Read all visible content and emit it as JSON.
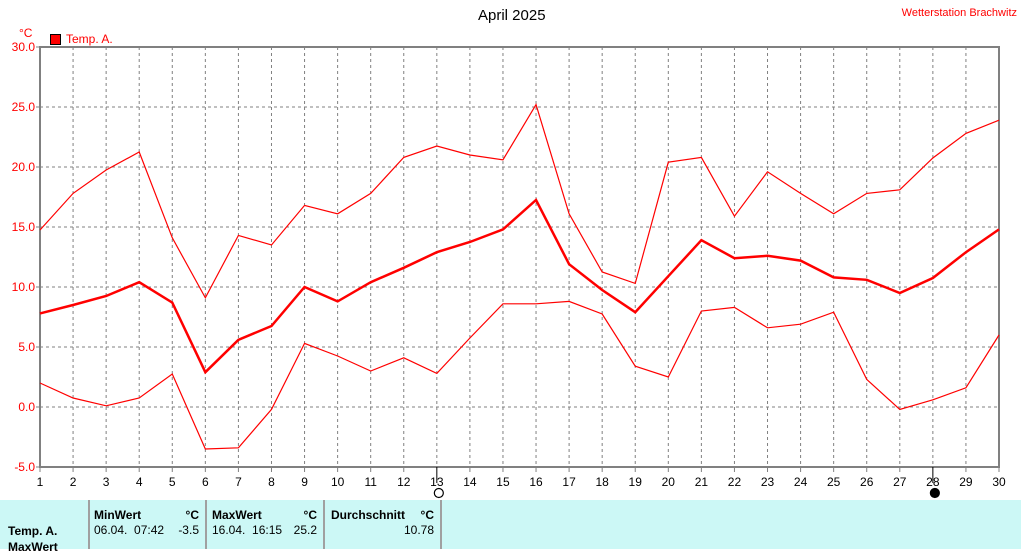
{
  "station": "Wetterstation Brachwitz",
  "chart_data": {
    "type": "line",
    "title": "April 2025",
    "ylabel": "°C",
    "xlim": [
      1,
      30
    ],
    "ylim": [
      -5,
      30
    ],
    "grid": true,
    "legend": {
      "placement": "top-left",
      "entries": [
        "Temp. A."
      ]
    },
    "x": [
      1,
      2,
      3,
      4,
      5,
      6,
      7,
      8,
      9,
      10,
      11,
      12,
      13,
      14,
      15,
      16,
      17,
      18,
      19,
      20,
      21,
      22,
      23,
      24,
      25,
      26,
      27,
      28,
      29,
      30
    ],
    "yticks": [
      "-5.0",
      "0.0",
      "5.0",
      "10.0",
      "15.0",
      "20.0",
      "25.0",
      "30.0"
    ],
    "series": [
      {
        "role": "max",
        "color": "#ff0000",
        "values": [
          14.75,
          17.8,
          19.75,
          21.25,
          14.1,
          9.1,
          14.3,
          13.5,
          16.8,
          16.1,
          17.8,
          20.8,
          21.75,
          21.0,
          20.6,
          25.2,
          16.1,
          11.25,
          10.3,
          20.4,
          20.8,
          15.9,
          19.6,
          17.8,
          16.1,
          17.8,
          18.1,
          20.75,
          22.8,
          23.9
        ]
      },
      {
        "role": "mean",
        "name": "Temp. A.",
        "color": "#ff0000",
        "values": [
          7.8,
          8.5,
          9.25,
          10.4,
          8.7,
          2.9,
          5.6,
          6.75,
          10.0,
          8.8,
          10.4,
          11.6,
          12.9,
          13.75,
          14.8,
          17.25,
          11.9,
          9.75,
          7.9,
          10.9,
          13.9,
          12.4,
          12.6,
          12.2,
          10.8,
          10.6,
          9.5,
          10.75,
          12.9,
          14.8
        ]
      },
      {
        "role": "min",
        "color": "#ff0000",
        "values": [
          2.0,
          0.75,
          0.1,
          0.75,
          2.75,
          -3.5,
          -3.4,
          -0.2,
          5.3,
          4.25,
          3.0,
          4.1,
          2.8,
          5.75,
          8.6,
          8.6,
          8.8,
          7.75,
          3.4,
          2.5,
          8.0,
          8.3,
          6.6,
          6.9,
          7.9,
          2.3,
          -0.2,
          0.6,
          1.6,
          6.0
        ]
      }
    ],
    "moon_markers": [
      {
        "day": 13,
        "icon": "open-circle-icon"
      },
      {
        "day": 28,
        "icon": "filled-circle-icon"
      }
    ]
  },
  "table": {
    "row_label": "Temp. A.",
    "row_label2": "MaxWert",
    "min": {
      "header": "MinWert",
      "unit": "°C",
      "datetime": "06.04.  07:42",
      "value": "-3.5"
    },
    "max": {
      "header": "MaxWert",
      "unit": "°C",
      "datetime": "16.04.  16:15",
      "value": "25.2"
    },
    "avg": {
      "header": "Durchschnitt",
      "unit": "°C",
      "value": "10.78"
    }
  }
}
